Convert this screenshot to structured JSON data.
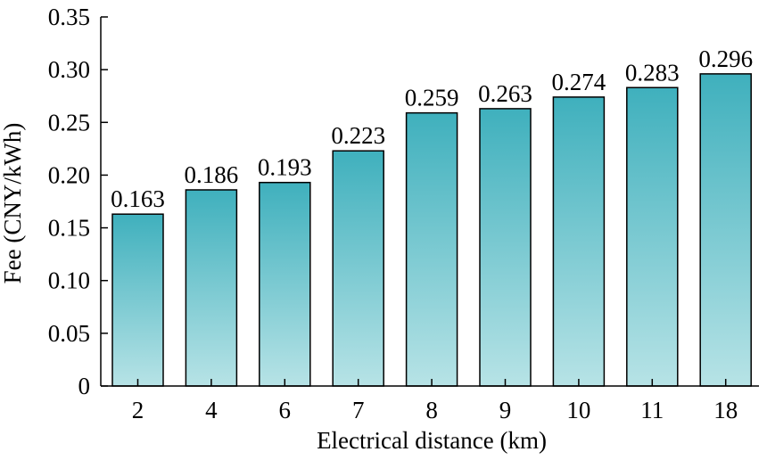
{
  "chart_data": {
    "type": "bar",
    "categories": [
      "2",
      "4",
      "6",
      "7",
      "8",
      "9",
      "10",
      "11",
      "18"
    ],
    "values": [
      0.163,
      0.186,
      0.193,
      0.223,
      0.259,
      0.263,
      0.274,
      0.283,
      0.296
    ],
    "value_labels": [
      "0.163",
      "0.186",
      "0.193",
      "0.223",
      "0.259",
      "0.263",
      "0.274",
      "0.283",
      "0.296"
    ],
    "xlabel": "Electrical distance (km)",
    "ylabel": "Fee (CNY/kWh)",
    "ylim": [
      0,
      0.35
    ],
    "yticks": [
      0,
      0.05,
      0.1,
      0.15,
      0.2,
      0.25,
      0.3,
      0.35
    ],
    "ytick_labels": [
      "0",
      "0.05",
      "0.10",
      "0.15",
      "0.20",
      "0.25",
      "0.30",
      "0.35"
    ],
    "grid": false,
    "legend": "none",
    "colors": {
      "bar_top": "#3fb0bd",
      "bar_bottom": "#b7e3e6",
      "bar_outline": "#000000"
    }
  }
}
